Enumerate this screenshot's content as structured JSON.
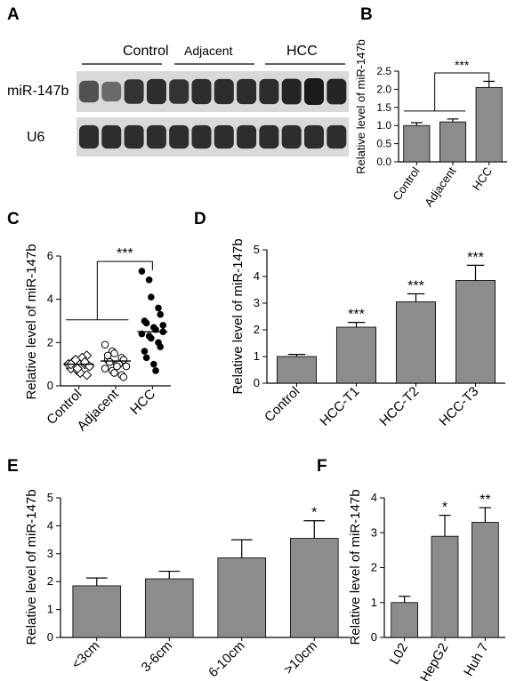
{
  "colors": {
    "bar_fill": "#8c8c8c",
    "ink": "#000000",
    "blot_bg": "#d9d9d9",
    "band_dark": "#1a1a1a"
  },
  "panel_a": {
    "letter": "A",
    "groups": [
      "Control",
      "Adjacent",
      "HCC"
    ],
    "rows": [
      {
        "label": "miR-147b",
        "intensities": [
          0.55,
          0.35,
          0.8,
          0.85,
          0.8,
          0.85,
          0.85,
          0.85,
          0.85,
          0.9,
          1.0,
          0.9
        ]
      },
      {
        "label": "U6",
        "intensities": [
          0.85,
          0.85,
          0.85,
          0.85,
          0.85,
          0.85,
          0.85,
          0.85,
          0.85,
          0.85,
          0.85,
          0.85
        ]
      }
    ]
  },
  "chart_data": [
    {
      "id": "B",
      "letter": "B",
      "type": "bar",
      "ylabel": "Relative level of miR-147b",
      "ylim": [
        0,
        2.5
      ],
      "yticks": [
        "0.0",
        "0.5",
        "1.0",
        "1.5",
        "2.0",
        "2.5"
      ],
      "categories": [
        "Control",
        "Adjacent",
        "HCC"
      ],
      "values": [
        1.0,
        1.1,
        2.05
      ],
      "errors": [
        0.08,
        0.08,
        0.17
      ],
      "annotations": [
        {
          "text": "***",
          "type": "bracket",
          "from": [
            0,
            1
          ],
          "to": 2
        }
      ]
    },
    {
      "id": "C",
      "letter": "C",
      "type": "scatter",
      "ylabel": "Relative level of miR-147b",
      "ylim": [
        0,
        6
      ],
      "yticks": [
        "0",
        "2",
        "4",
        "6"
      ],
      "categories": [
        "Control",
        "Adjacent",
        "HCC"
      ],
      "means": [
        1.0,
        1.15,
        2.5
      ],
      "series": [
        {
          "marker": "diamond-open",
          "values": [
            1.0,
            1.2,
            0.7,
            1.0,
            1.4,
            0.8,
            1.1,
            0.6,
            1.3,
            0.9,
            1.0,
            1.2,
            0.8,
            1.1,
            0.5,
            1.0
          ]
        },
        {
          "marker": "circle-open",
          "values": [
            1.9,
            1.6,
            1.5,
            1.3,
            1.2,
            1.2,
            1.1,
            1.0,
            1.0,
            0.9,
            0.8,
            0.7,
            0.6,
            0.5,
            0.4,
            1.4,
            1.1,
            0.9
          ]
        },
        {
          "marker": "circle-filled",
          "values": [
            5.3,
            4.9,
            4.1,
            3.6,
            3.3,
            3.0,
            2.9,
            2.7,
            2.6,
            2.5,
            2.4,
            2.3,
            2.2,
            2.0,
            1.8,
            1.6,
            1.3,
            1.0,
            0.7,
            2.8
          ]
        }
      ],
      "annotations": [
        {
          "text": "***",
          "type": "bracket",
          "from": [
            0,
            1
          ],
          "to": 2
        }
      ]
    },
    {
      "id": "D",
      "letter": "D",
      "type": "bar",
      "ylabel": "Relative level of miR-147b",
      "ylim": [
        0,
        5
      ],
      "yticks": [
        "0",
        "1",
        "2",
        "3",
        "4",
        "5"
      ],
      "categories": [
        "Control",
        "HCC-T1",
        "HCC-T2",
        "HCC-T3"
      ],
      "values": [
        1.0,
        2.1,
        3.05,
        3.85
      ],
      "errors": [
        0.08,
        0.18,
        0.3,
        0.57
      ],
      "stars": [
        "",
        "***",
        "***",
        "***"
      ]
    },
    {
      "id": "E",
      "letter": "E",
      "type": "bar",
      "ylabel": "Relative level of miR-147b",
      "ylim": [
        0,
        5
      ],
      "yticks": [
        "0",
        "1",
        "2",
        "3",
        "4",
        "5"
      ],
      "categories": [
        "<3cm",
        "3-6cm",
        "6-10cm",
        ">10cm"
      ],
      "values": [
        1.85,
        2.1,
        2.85,
        3.55
      ],
      "errors": [
        0.28,
        0.27,
        0.65,
        0.63
      ],
      "stars": [
        "",
        "",
        "",
        "*"
      ]
    },
    {
      "id": "F",
      "letter": "F",
      "type": "bar",
      "ylabel": "Relative level of miR-147b",
      "ylim": [
        0,
        4
      ],
      "yticks": [
        "0",
        "1",
        "2",
        "3",
        "4"
      ],
      "categories": [
        "L02",
        "HepG2",
        "Huh 7"
      ],
      "values": [
        1.0,
        2.9,
        3.3
      ],
      "errors": [
        0.18,
        0.6,
        0.42
      ],
      "stars": [
        "",
        "*",
        "**"
      ]
    }
  ]
}
